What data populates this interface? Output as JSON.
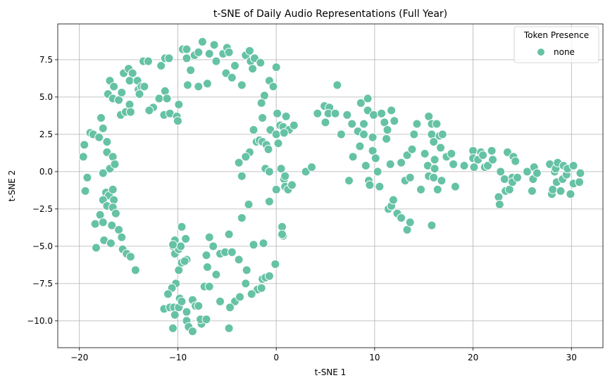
{
  "chart_data": {
    "type": "scatter",
    "title": "t-SNE of Daily Audio Representations (Full Year)",
    "xlabel": "t-SNE 1",
    "ylabel": "t-SNE 2",
    "xlim": [
      -22.2,
      33.2
    ],
    "ylim": [
      -11.8,
      9.9
    ],
    "xticks": [
      -20,
      -10,
      0,
      10,
      20,
      30
    ],
    "xtick_labels": [
      "−20",
      "−10",
      "0",
      "10",
      "20",
      "30"
    ],
    "yticks": [
      -10.0,
      -7.5,
      -5.0,
      -2.5,
      0.0,
      2.5,
      5.0,
      7.5
    ],
    "ytick_labels": [
      "−10.0",
      "−7.5",
      "−5.0",
      "−2.5",
      "0.0",
      "2.5",
      "5.0",
      "7.5"
    ],
    "grid": true,
    "legend": {
      "title": "Token Presence",
      "placement": "top-right",
      "entries": [
        "none"
      ]
    },
    "series": [
      {
        "name": "none",
        "color": "#66c2a5",
        "points": [
          [
            -19.6,
            1.0
          ],
          [
            -19.5,
            1.8
          ],
          [
            -19.2,
            -0.4
          ],
          [
            -19.4,
            -1.3
          ],
          [
            -18.9,
            2.6
          ],
          [
            -18.6,
            2.5
          ],
          [
            -18.0,
            2.3
          ],
          [
            -17.8,
            3.6
          ],
          [
            -17.6,
            2.9
          ],
          [
            -17.2,
            2.0
          ],
          [
            -17.2,
            1.3
          ],
          [
            -16.9,
            0.2
          ],
          [
            -16.6,
            1.0
          ],
          [
            -16.4,
            0.5
          ],
          [
            -17.6,
            -0.1
          ],
          [
            -17.3,
            -1.4
          ],
          [
            -17.0,
            -1.6
          ],
          [
            -16.6,
            -1.2
          ],
          [
            -16.5,
            -1.9
          ],
          [
            -17.6,
            -1.9
          ],
          [
            -17.2,
            -2.3
          ],
          [
            -17.9,
            -2.9
          ],
          [
            -16.6,
            -2.4
          ],
          [
            -16.3,
            -2.8
          ],
          [
            -18.4,
            -3.5
          ],
          [
            -17.6,
            -3.4
          ],
          [
            -16.7,
            -3.6
          ],
          [
            -16.0,
            -3.9
          ],
          [
            -17.5,
            -4.6
          ],
          [
            -16.8,
            -4.8
          ],
          [
            -18.3,
            -5.1
          ],
          [
            -15.7,
            -4.4
          ],
          [
            -15.6,
            -5.2
          ],
          [
            -15.2,
            -5.5
          ],
          [
            -14.8,
            -5.7
          ],
          [
            -14.3,
            -6.6
          ],
          [
            -17.1,
            5.2
          ],
          [
            -16.9,
            6.1
          ],
          [
            -16.5,
            5.7
          ],
          [
            -16.6,
            4.9
          ],
          [
            -16.0,
            4.8
          ],
          [
            -15.7,
            5.3
          ],
          [
            -15.8,
            3.8
          ],
          [
            -15.3,
            4.0
          ],
          [
            -14.9,
            4.5
          ],
          [
            -14.8,
            4.0
          ],
          [
            -15.5,
            6.6
          ],
          [
            -15.0,
            6.9
          ],
          [
            -14.6,
            6.6
          ],
          [
            -14.9,
            6.1
          ],
          [
            -14.1,
            6.1
          ],
          [
            -14.0,
            5.5
          ],
          [
            -13.7,
            5.7
          ],
          [
            -13.5,
            7.4
          ],
          [
            -13.0,
            7.4
          ],
          [
            -12.5,
            4.3
          ],
          [
            -11.9,
            4.9
          ],
          [
            -11.7,
            7.1
          ],
          [
            -11.3,
            7.6
          ],
          [
            -11.3,
            5.4
          ],
          [
            -11.1,
            4.9
          ],
          [
            -11.4,
            3.8
          ],
          [
            -10.9,
            7.6
          ],
          [
            -10.8,
            3.9
          ],
          [
            -10.1,
            3.7
          ],
          [
            -10.0,
            3.4
          ],
          [
            -9.9,
            4.5
          ],
          [
            -9.5,
            8.2
          ],
          [
            -9.1,
            8.2
          ],
          [
            -9.1,
            7.6
          ],
          [
            -9.0,
            5.8
          ],
          [
            -8.7,
            6.8
          ],
          [
            -8.3,
            7.8
          ],
          [
            -7.9,
            5.7
          ],
          [
            -7.9,
            8.0
          ],
          [
            -7.5,
            8.7
          ],
          [
            -7.0,
            5.9
          ],
          [
            -6.8,
            7.9
          ],
          [
            -6.3,
            8.5
          ],
          [
            -6.1,
            7.4
          ],
          [
            -5.4,
            7.9
          ],
          [
            -5.1,
            6.6
          ],
          [
            -5.0,
            8.3
          ],
          [
            -4.8,
            8.0
          ],
          [
            -4.5,
            6.3
          ],
          [
            -4.2,
            7.1
          ],
          [
            -3.5,
            5.8
          ],
          [
            -3.1,
            7.8
          ],
          [
            -2.7,
            8.1
          ],
          [
            -2.6,
            7.4
          ],
          [
            -2.4,
            6.9
          ],
          [
            -2.2,
            7.6
          ],
          [
            -1.6,
            7.3
          ],
          [
            -1.2,
            5.1
          ],
          [
            -1.5,
            4.6
          ],
          [
            -1.4,
            3.6
          ],
          [
            -0.7,
            6.1
          ],
          [
            -0.3,
            5.7
          ],
          [
            -2.3,
            2.8
          ],
          [
            -2.0,
            2.0
          ],
          [
            -1.7,
            2.1
          ],
          [
            -1.4,
            2.0
          ],
          [
            -1.0,
            1.8
          ],
          [
            -0.8,
            1.5
          ],
          [
            -0.6,
            2.8
          ],
          [
            -2.7,
            1.3
          ],
          [
            -3.1,
            1.0
          ],
          [
            -3.8,
            0.6
          ],
          [
            -1.1,
            0.2
          ],
          [
            -0.7,
            0.0
          ],
          [
            0.0,
            2.5
          ],
          [
            0.1,
            3.9
          ],
          [
            0.4,
            3.1
          ],
          [
            0.7,
            3.0
          ],
          [
            1.0,
            3.7
          ],
          [
            1.3,
            2.8
          ],
          [
            1.8,
            3.1
          ],
          [
            0.2,
            1.9
          ],
          [
            0.8,
            2.6
          ],
          [
            0.0,
            -1.2
          ],
          [
            0.5,
            0.2
          ],
          [
            0.8,
            -0.5
          ],
          [
            0.9,
            -0.3
          ],
          [
            0.9,
            -1.0
          ],
          [
            1.2,
            -1.2
          ],
          [
            1.6,
            -0.9
          ],
          [
            0.0,
            7.0
          ],
          [
            3.0,
            0.0
          ],
          [
            3.6,
            0.3
          ],
          [
            4.2,
            3.9
          ],
          [
            4.9,
            4.4
          ],
          [
            5.4,
            4.3
          ],
          [
            5.0,
            3.3
          ],
          [
            5.3,
            3.9
          ],
          [
            6.0,
            3.9
          ],
          [
            6.2,
            5.8
          ],
          [
            6.6,
            2.5
          ],
          [
            7.2,
            3.8
          ],
          [
            7.4,
            -0.6
          ],
          [
            7.7,
            3.2
          ],
          [
            7.8,
            1.0
          ],
          [
            8.3,
            2.7
          ],
          [
            8.5,
            1.7
          ],
          [
            8.6,
            4.6
          ],
          [
            8.9,
            3.2
          ],
          [
            8.9,
            2.5
          ],
          [
            9.1,
            0.4
          ],
          [
            9.3,
            4.9
          ],
          [
            9.3,
            4.1
          ],
          [
            9.4,
            -0.6
          ],
          [
            9.5,
            -0.9
          ],
          [
            9.8,
            2.3
          ],
          [
            9.9,
            3.8
          ],
          [
            9.8,
            1.4
          ],
          [
            10.1,
            0.9
          ],
          [
            10.3,
            0.0
          ],
          [
            10.7,
            3.9
          ],
          [
            10.5,
            -1.0
          ],
          [
            11.0,
            3.3
          ],
          [
            11.2,
            2.2
          ],
          [
            11.3,
            2.8
          ],
          [
            11.4,
            -2.5
          ],
          [
            11.6,
            0.5
          ],
          [
            11.7,
            -2.3
          ],
          [
            11.9,
            -1.9
          ],
          [
            11.7,
            4.1
          ],
          [
            12.0,
            3.4
          ],
          [
            12.3,
            -2.8
          ],
          [
            12.7,
            0.6
          ],
          [
            12.7,
            -3.1
          ],
          [
            13.1,
            -0.6
          ],
          [
            13.3,
            -3.9
          ],
          [
            13.3,
            1.1
          ],
          [
            13.6,
            -3.4
          ],
          [
            13.6,
            -0.4
          ],
          [
            13.8,
            1.5
          ],
          [
            14.0,
            2.5
          ],
          [
            14.3,
            3.2
          ],
          [
            14.7,
            -1.2
          ],
          [
            15.1,
            1.2
          ],
          [
            15.4,
            0.4
          ],
          [
            15.5,
            -0.3
          ],
          [
            15.5,
            3.7
          ],
          [
            15.8,
            3.2
          ],
          [
            15.8,
            2.5
          ],
          [
            15.8,
            -3.6
          ],
          [
            16.0,
            2.0
          ],
          [
            16.1,
            0.2
          ],
          [
            16.1,
            0.8
          ],
          [
            16.0,
            -0.4
          ],
          [
            16.3,
            3.2
          ],
          [
            16.4,
            -1.2
          ],
          [
            16.6,
            2.4
          ],
          [
            16.7,
            1.6
          ],
          [
            16.8,
            -0.6
          ],
          [
            16.9,
            2.5
          ],
          [
            17.3,
            1.0
          ],
          [
            17.8,
            1.2
          ],
          [
            18.0,
            0.5
          ],
          [
            18.2,
            -1.0
          ],
          [
            19.1,
            0.4
          ],
          [
            20.0,
            1.4
          ],
          [
            20.0,
            0.9
          ],
          [
            20.1,
            0.3
          ],
          [
            20.5,
            0.8
          ],
          [
            20.8,
            1.3
          ],
          [
            21.0,
            1.1
          ],
          [
            21.2,
            0.3
          ],
          [
            21.5,
            0.4
          ],
          [
            21.9,
            1.4
          ],
          [
            22.0,
            0.8
          ],
          [
            22.6,
            -1.7
          ],
          [
            22.7,
            -2.2
          ],
          [
            22.8,
            0.0
          ],
          [
            23.2,
            -0.5
          ],
          [
            23.3,
            -1.3
          ],
          [
            23.5,
            1.3
          ],
          [
            23.7,
            -1.2
          ],
          [
            24.0,
            -0.4
          ],
          [
            24.0,
            -0.7
          ],
          [
            24.1,
            1.0
          ],
          [
            24.3,
            0.7
          ],
          [
            24.5,
            -0.4
          ],
          [
            25.5,
            0.0
          ],
          [
            26.0,
            -1.3
          ],
          [
            26.1,
            -0.5
          ],
          [
            26.2,
            0.3
          ],
          [
            26.5,
            -0.1
          ],
          [
            27.8,
            0.5
          ],
          [
            28.0,
            -1.5
          ],
          [
            28.1,
            -1.2
          ],
          [
            28.3,
            0.0
          ],
          [
            28.4,
            0.2
          ],
          [
            28.5,
            -0.7
          ],
          [
            28.6,
            0.6
          ],
          [
            28.9,
            -1.3
          ],
          [
            29.1,
            -0.5
          ],
          [
            29.2,
            0.4
          ],
          [
            29.5,
            -0.2
          ],
          [
            29.6,
            0.2
          ],
          [
            29.9,
            -1.5
          ],
          [
            30.2,
            -0.8
          ],
          [
            30.2,
            0.4
          ],
          [
            30.8,
            -0.7
          ],
          [
            30.9,
            -0.1
          ],
          [
            -13.4,
            5.7
          ],
          [
            -13.9,
            5.2
          ],
          [
            -12.9,
            4.1
          ],
          [
            -10.3,
            -4.6
          ],
          [
            -10.5,
            -5.0
          ],
          [
            -10.3,
            -5.5
          ],
          [
            -9.9,
            -5.2
          ],
          [
            -9.7,
            -5.0
          ],
          [
            -9.6,
            -3.7
          ],
          [
            -9.2,
            -4.5
          ],
          [
            -6.8,
            -4.4
          ],
          [
            -10.2,
            -7.5
          ],
          [
            -10.6,
            -7.8
          ],
          [
            -11.0,
            -8.2
          ],
          [
            -9.9,
            -6.6
          ],
          [
            -9.6,
            -6.1
          ],
          [
            -9.1,
            -5.9
          ],
          [
            -7.1,
            -5.6
          ],
          [
            -7.0,
            -6.4
          ],
          [
            -6.4,
            -5.0
          ],
          [
            -6.1,
            -6.9
          ],
          [
            -5.7,
            -5.5
          ],
          [
            -5.2,
            -5.4
          ],
          [
            -4.8,
            -4.2
          ],
          [
            -4.5,
            -5.4
          ],
          [
            -3.8,
            -5.9
          ],
          [
            -3.5,
            -3.1
          ],
          [
            -3.0,
            -6.6
          ],
          [
            -3.1,
            -7.5
          ],
          [
            -2.8,
            -2.2
          ],
          [
            -2.3,
            -4.9
          ],
          [
            -1.9,
            -7.9
          ],
          [
            -1.5,
            -7.8
          ],
          [
            -1.4,
            -7.2
          ],
          [
            -1.1,
            -7.1
          ],
          [
            -1.3,
            -4.8
          ],
          [
            -0.7,
            -7.0
          ],
          [
            -0.1,
            -6.2
          ],
          [
            -7.3,
            -7.7
          ],
          [
            -6.8,
            -7.7
          ],
          [
            -5.7,
            -8.7
          ],
          [
            -4.2,
            -8.7
          ],
          [
            -3.7,
            -8.4
          ],
          [
            -2.5,
            -8.2
          ],
          [
            -11.4,
            -9.2
          ],
          [
            -10.8,
            -9.1
          ],
          [
            -10.4,
            -9.1
          ],
          [
            -10.3,
            -9.6
          ],
          [
            -10.5,
            -10.5
          ],
          [
            -9.9,
            -9.1
          ],
          [
            -9.8,
            -8.5
          ],
          [
            -9.6,
            -8.7
          ],
          [
            -9.1,
            -9.4
          ],
          [
            -9.1,
            -10.0
          ],
          [
            -8.9,
            -10.4
          ],
          [
            -8.5,
            -8.6
          ],
          [
            -8.2,
            -9.0
          ],
          [
            -7.9,
            -9.0
          ],
          [
            -8.5,
            -10.7
          ],
          [
            -7.6,
            -10.2
          ],
          [
            -7.7,
            -9.9
          ],
          [
            -7.1,
            -9.9
          ],
          [
            -4.8,
            -10.5
          ],
          [
            -4.7,
            -9.1
          ],
          [
            -10.5,
            -4.9
          ],
          [
            -9.3,
            -6.0
          ],
          [
            0.6,
            -3.7
          ],
          [
            0.7,
            -4.3
          ],
          [
            0.6,
            -4.2
          ],
          [
            -0.7,
            -2.0
          ],
          [
            -3.5,
            -0.3
          ]
        ]
      }
    ]
  }
}
